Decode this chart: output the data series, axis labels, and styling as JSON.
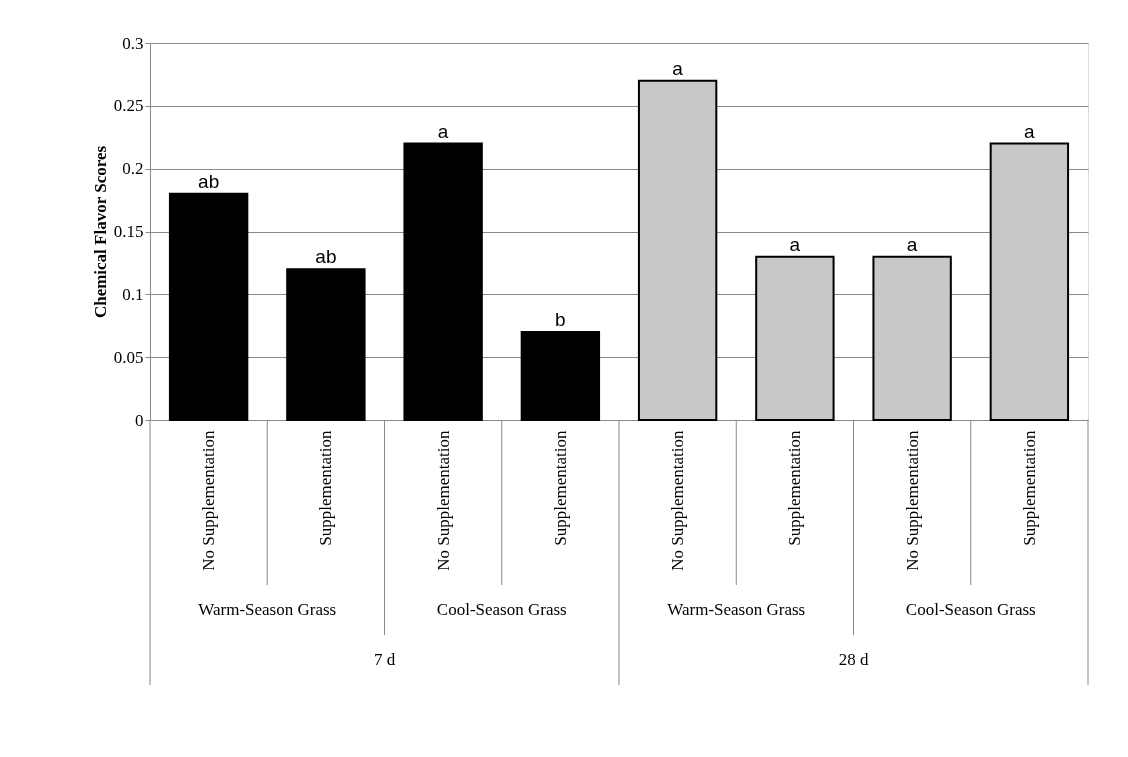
{
  "chart_data": {
    "type": "bar",
    "ylabel": "Chemical Flavor Scores",
    "categories": [
      "No Supplementation",
      "Supplementation",
      "No Supplementation",
      "Supplementation",
      "No Supplementation",
      "Supplementation",
      "No Supplementation",
      "Supplementation"
    ],
    "values": [
      0.18,
      0.12,
      0.22,
      0.07,
      0.27,
      0.13,
      0.13,
      0.22
    ],
    "colors": [
      "#000000",
      "#000000",
      "#000000",
      "#000000",
      "#c8c8c8",
      "#c8c8c8",
      "#c8c8c8",
      "#c8c8c8"
    ],
    "value_labels": [
      "ab",
      "ab",
      "a",
      "b",
      "a",
      "a",
      "a",
      "a"
    ],
    "annotations": [
      "Warm-Season Grass",
      "Cool-Season Grass",
      "Warm-Season Grass",
      "Cool-Season Grass",
      "7 d",
      "28 d"
    ],
    "ylim": [
      0,
      0.3
    ],
    "yticks": [
      0,
      0.05,
      0.1,
      0.15,
      0.2,
      0.25,
      0.3
    ],
    "grid": "y"
  }
}
